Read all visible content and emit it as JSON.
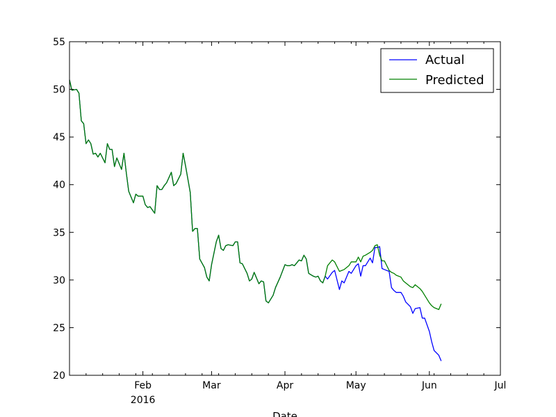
{
  "chart_data": {
    "type": "line",
    "title": "",
    "xlabel": "Date",
    "ylabel": "",
    "ylim": [
      20,
      55
    ],
    "xlim": [
      "2016-01-01",
      "2016-07-01"
    ],
    "yticks": [
      20,
      25,
      30,
      35,
      40,
      45,
      50,
      55
    ],
    "xticks": [
      {
        "date": "2016-02-01",
        "label": "Feb",
        "sublabel": "2016"
      },
      {
        "date": "2016-03-01",
        "label": "Mar",
        "sublabel": ""
      },
      {
        "date": "2016-04-01",
        "label": "Apr",
        "sublabel": ""
      },
      {
        "date": "2016-05-01",
        "label": "May",
        "sublabel": ""
      },
      {
        "date": "2016-06-01",
        "label": "Jun",
        "sublabel": ""
      },
      {
        "date": "2016-07-01",
        "label": "Jul",
        "sublabel": ""
      }
    ],
    "grid": false,
    "legend_position": "top-right",
    "series": [
      {
        "name": "Actual",
        "color": "#0000ff",
        "points": [
          [
            "2016-01-01",
            51.0
          ],
          [
            "2016-01-02",
            49.9
          ],
          [
            "2016-01-04",
            50.0
          ],
          [
            "2016-01-05",
            49.6
          ],
          [
            "2016-01-06",
            46.7
          ],
          [
            "2016-01-07",
            46.4
          ],
          [
            "2016-01-08",
            44.3
          ],
          [
            "2016-01-09",
            44.7
          ],
          [
            "2016-01-10",
            44.3
          ],
          [
            "2016-01-11",
            43.2
          ],
          [
            "2016-01-12",
            43.3
          ],
          [
            "2016-01-13",
            42.9
          ],
          [
            "2016-01-14",
            43.3
          ],
          [
            "2016-01-16",
            42.3
          ],
          [
            "2016-01-17",
            44.3
          ],
          [
            "2016-01-18",
            43.7
          ],
          [
            "2016-01-19",
            43.7
          ],
          [
            "2016-01-20",
            41.9
          ],
          [
            "2016-01-21",
            42.8
          ],
          [
            "2016-01-23",
            41.6
          ],
          [
            "2016-01-24",
            43.3
          ],
          [
            "2016-01-25",
            41.2
          ],
          [
            "2016-01-26",
            39.3
          ],
          [
            "2016-01-28",
            38.1
          ],
          [
            "2016-01-29",
            39.0
          ],
          [
            "2016-01-30",
            38.8
          ],
          [
            "2016-02-01",
            38.8
          ],
          [
            "2016-02-02",
            37.9
          ],
          [
            "2016-02-03",
            37.6
          ],
          [
            "2016-02-04",
            37.7
          ],
          [
            "2016-02-06",
            37.0
          ],
          [
            "2016-02-07",
            39.9
          ],
          [
            "2016-02-08",
            39.5
          ],
          [
            "2016-02-09",
            39.5
          ],
          [
            "2016-02-10",
            39.9
          ],
          [
            "2016-02-11",
            40.2
          ],
          [
            "2016-02-13",
            41.3
          ],
          [
            "2016-02-14",
            39.9
          ],
          [
            "2016-02-15",
            40.1
          ],
          [
            "2016-02-17",
            41.1
          ],
          [
            "2016-02-18",
            43.3
          ],
          [
            "2016-02-19",
            42.0
          ],
          [
            "2016-02-21",
            39.2
          ],
          [
            "2016-02-22",
            35.1
          ],
          [
            "2016-02-23",
            35.4
          ],
          [
            "2016-02-24",
            35.4
          ],
          [
            "2016-02-25",
            32.2
          ],
          [
            "2016-02-27",
            31.3
          ],
          [
            "2016-02-28",
            30.3
          ],
          [
            "2016-02-29",
            29.9
          ],
          [
            "2016-03-01",
            31.6
          ],
          [
            "2016-03-03",
            34.0
          ],
          [
            "2016-03-04",
            34.7
          ],
          [
            "2016-03-05",
            33.3
          ],
          [
            "2016-03-06",
            33.1
          ],
          [
            "2016-03-07",
            33.6
          ],
          [
            "2016-03-08",
            33.7
          ],
          [
            "2016-03-10",
            33.6
          ],
          [
            "2016-03-11",
            34.0
          ],
          [
            "2016-03-12",
            34.0
          ],
          [
            "2016-03-13",
            31.8
          ],
          [
            "2016-03-14",
            31.7
          ],
          [
            "2016-03-16",
            30.7
          ],
          [
            "2016-03-17",
            29.9
          ],
          [
            "2016-03-18",
            30.1
          ],
          [
            "2016-03-19",
            30.8
          ],
          [
            "2016-03-21",
            29.6
          ],
          [
            "2016-03-22",
            29.9
          ],
          [
            "2016-03-23",
            29.8
          ],
          [
            "2016-03-24",
            27.8
          ],
          [
            "2016-03-25",
            27.6
          ],
          [
            "2016-03-27",
            28.4
          ],
          [
            "2016-03-28",
            29.2
          ],
          [
            "2016-03-30",
            30.3
          ],
          [
            "2016-04-01",
            31.6
          ],
          [
            "2016-04-02",
            31.5
          ],
          [
            "2016-04-03",
            31.5
          ],
          [
            "2016-04-04",
            31.6
          ],
          [
            "2016-04-05",
            31.5
          ],
          [
            "2016-04-07",
            32.1
          ],
          [
            "2016-04-08",
            32.0
          ],
          [
            "2016-04-09",
            32.6
          ],
          [
            "2016-04-10",
            32.2
          ],
          [
            "2016-04-11",
            30.7
          ],
          [
            "2016-04-13",
            30.4
          ],
          [
            "2016-04-14",
            30.3
          ],
          [
            "2016-04-15",
            30.4
          ],
          [
            "2016-04-16",
            29.9
          ],
          [
            "2016-04-17",
            29.7
          ],
          [
            "2016-04-18",
            30.4
          ],
          [
            "2016-04-19",
            30.1
          ],
          [
            "2016-04-21",
            30.8
          ],
          [
            "2016-04-22",
            31.0
          ],
          [
            "2016-04-24",
            29.0
          ],
          [
            "2016-04-25",
            29.9
          ],
          [
            "2016-04-26",
            29.7
          ],
          [
            "2016-04-28",
            30.9
          ],
          [
            "2016-04-29",
            30.7
          ],
          [
            "2016-05-01",
            31.5
          ],
          [
            "2016-05-02",
            31.7
          ],
          [
            "2016-05-03",
            30.4
          ],
          [
            "2016-05-04",
            31.5
          ],
          [
            "2016-05-05",
            31.5
          ],
          [
            "2016-05-07",
            32.3
          ],
          [
            "2016-05-08",
            31.8
          ],
          [
            "2016-05-09",
            33.4
          ],
          [
            "2016-05-10",
            33.4
          ],
          [
            "2016-05-11",
            33.5
          ],
          [
            "2016-05-12",
            31.2
          ],
          [
            "2016-05-13",
            31.1
          ],
          [
            "2016-05-15",
            30.9
          ],
          [
            "2016-05-16",
            29.2
          ],
          [
            "2016-05-17",
            28.9
          ],
          [
            "2016-05-18",
            28.7
          ],
          [
            "2016-05-20",
            28.7
          ],
          [
            "2016-05-21",
            28.3
          ],
          [
            "2016-05-22",
            27.7
          ],
          [
            "2016-05-24",
            27.2
          ],
          [
            "2016-05-25",
            26.5
          ],
          [
            "2016-05-26",
            27.0
          ],
          [
            "2016-05-28",
            27.1
          ],
          [
            "2016-05-29",
            26.0
          ],
          [
            "2016-05-30",
            26.0
          ],
          [
            "2016-06-01",
            24.6
          ],
          [
            "2016-06-02",
            23.5
          ],
          [
            "2016-06-03",
            22.6
          ],
          [
            "2016-06-05",
            22.1
          ],
          [
            "2016-06-06",
            21.5
          ]
        ]
      },
      {
        "name": "Predicted",
        "color": "#008000",
        "points": [
          [
            "2016-01-01",
            51.0
          ],
          [
            "2016-01-02",
            49.9
          ],
          [
            "2016-01-04",
            50.0
          ],
          [
            "2016-01-05",
            49.6
          ],
          [
            "2016-01-06",
            46.7
          ],
          [
            "2016-01-07",
            46.4
          ],
          [
            "2016-01-08",
            44.3
          ],
          [
            "2016-01-09",
            44.7
          ],
          [
            "2016-01-10",
            44.3
          ],
          [
            "2016-01-11",
            43.2
          ],
          [
            "2016-01-12",
            43.3
          ],
          [
            "2016-01-13",
            42.9
          ],
          [
            "2016-01-14",
            43.3
          ],
          [
            "2016-01-16",
            42.3
          ],
          [
            "2016-01-17",
            44.3
          ],
          [
            "2016-01-18",
            43.7
          ],
          [
            "2016-01-19",
            43.7
          ],
          [
            "2016-01-20",
            41.9
          ],
          [
            "2016-01-21",
            42.8
          ],
          [
            "2016-01-23",
            41.6
          ],
          [
            "2016-01-24",
            43.3
          ],
          [
            "2016-01-25",
            41.2
          ],
          [
            "2016-01-26",
            39.3
          ],
          [
            "2016-01-28",
            38.1
          ],
          [
            "2016-01-29",
            39.0
          ],
          [
            "2016-01-30",
            38.8
          ],
          [
            "2016-02-01",
            38.8
          ],
          [
            "2016-02-02",
            37.9
          ],
          [
            "2016-02-03",
            37.6
          ],
          [
            "2016-02-04",
            37.7
          ],
          [
            "2016-02-06",
            37.0
          ],
          [
            "2016-02-07",
            39.9
          ],
          [
            "2016-02-08",
            39.5
          ],
          [
            "2016-02-09",
            39.5
          ],
          [
            "2016-02-10",
            39.9
          ],
          [
            "2016-02-11",
            40.2
          ],
          [
            "2016-02-13",
            41.3
          ],
          [
            "2016-02-14",
            39.9
          ],
          [
            "2016-02-15",
            40.1
          ],
          [
            "2016-02-17",
            41.1
          ],
          [
            "2016-02-18",
            43.3
          ],
          [
            "2016-02-19",
            42.0
          ],
          [
            "2016-02-21",
            39.2
          ],
          [
            "2016-02-22",
            35.1
          ],
          [
            "2016-02-23",
            35.4
          ],
          [
            "2016-02-24",
            35.4
          ],
          [
            "2016-02-25",
            32.2
          ],
          [
            "2016-02-27",
            31.3
          ],
          [
            "2016-02-28",
            30.3
          ],
          [
            "2016-02-29",
            29.9
          ],
          [
            "2016-03-01",
            31.6
          ],
          [
            "2016-03-03",
            34.0
          ],
          [
            "2016-03-04",
            34.7
          ],
          [
            "2016-03-05",
            33.3
          ],
          [
            "2016-03-06",
            33.1
          ],
          [
            "2016-03-07",
            33.6
          ],
          [
            "2016-03-08",
            33.7
          ],
          [
            "2016-03-10",
            33.6
          ],
          [
            "2016-03-11",
            34.0
          ],
          [
            "2016-03-12",
            34.0
          ],
          [
            "2016-03-13",
            31.8
          ],
          [
            "2016-03-14",
            31.7
          ],
          [
            "2016-03-16",
            30.7
          ],
          [
            "2016-03-17",
            29.9
          ],
          [
            "2016-03-18",
            30.1
          ],
          [
            "2016-03-19",
            30.8
          ],
          [
            "2016-03-21",
            29.6
          ],
          [
            "2016-03-22",
            29.9
          ],
          [
            "2016-03-23",
            29.8
          ],
          [
            "2016-03-24",
            27.8
          ],
          [
            "2016-03-25",
            27.6
          ],
          [
            "2016-03-27",
            28.4
          ],
          [
            "2016-03-28",
            29.2
          ],
          [
            "2016-03-30",
            30.3
          ],
          [
            "2016-04-01",
            31.6
          ],
          [
            "2016-04-02",
            31.5
          ],
          [
            "2016-04-03",
            31.5
          ],
          [
            "2016-04-04",
            31.6
          ],
          [
            "2016-04-05",
            31.5
          ],
          [
            "2016-04-07",
            32.1
          ],
          [
            "2016-04-08",
            32.0
          ],
          [
            "2016-04-09",
            32.6
          ],
          [
            "2016-04-10",
            32.2
          ],
          [
            "2016-04-11",
            30.7
          ],
          [
            "2016-04-13",
            30.4
          ],
          [
            "2016-04-14",
            30.3
          ],
          [
            "2016-04-15",
            30.4
          ],
          [
            "2016-04-16",
            29.9
          ],
          [
            "2016-04-17",
            29.7
          ],
          [
            "2016-04-18",
            30.4
          ],
          [
            "2016-04-19",
            31.5
          ],
          [
            "2016-04-21",
            32.1
          ],
          [
            "2016-04-22",
            31.9
          ],
          [
            "2016-04-24",
            30.9
          ],
          [
            "2016-04-25",
            31.0
          ],
          [
            "2016-04-26",
            31.1
          ],
          [
            "2016-04-28",
            31.5
          ],
          [
            "2016-04-29",
            31.9
          ],
          [
            "2016-05-01",
            31.9
          ],
          [
            "2016-05-02",
            32.4
          ],
          [
            "2016-05-03",
            31.9
          ],
          [
            "2016-05-04",
            32.5
          ],
          [
            "2016-05-05",
            32.6
          ],
          [
            "2016-05-07",
            32.9
          ],
          [
            "2016-05-08",
            33.1
          ],
          [
            "2016-05-09",
            33.6
          ],
          [
            "2016-05-10",
            33.7
          ],
          [
            "2016-05-11",
            32.6
          ],
          [
            "2016-05-12",
            32.0
          ],
          [
            "2016-05-13",
            32.0
          ],
          [
            "2016-05-15",
            31.0
          ],
          [
            "2016-05-16",
            30.8
          ],
          [
            "2016-05-17",
            30.7
          ],
          [
            "2016-05-18",
            30.5
          ],
          [
            "2016-05-20",
            30.3
          ],
          [
            "2016-05-21",
            29.9
          ],
          [
            "2016-05-22",
            29.7
          ],
          [
            "2016-05-24",
            29.3
          ],
          [
            "2016-05-25",
            29.2
          ],
          [
            "2016-05-26",
            29.5
          ],
          [
            "2016-05-28",
            29.1
          ],
          [
            "2016-05-29",
            28.8
          ],
          [
            "2016-05-30",
            28.4
          ],
          [
            "2016-06-01",
            27.6
          ],
          [
            "2016-06-02",
            27.3
          ],
          [
            "2016-06-03",
            27.1
          ],
          [
            "2016-06-05",
            26.9
          ],
          [
            "2016-06-06",
            27.5
          ]
        ]
      }
    ]
  }
}
